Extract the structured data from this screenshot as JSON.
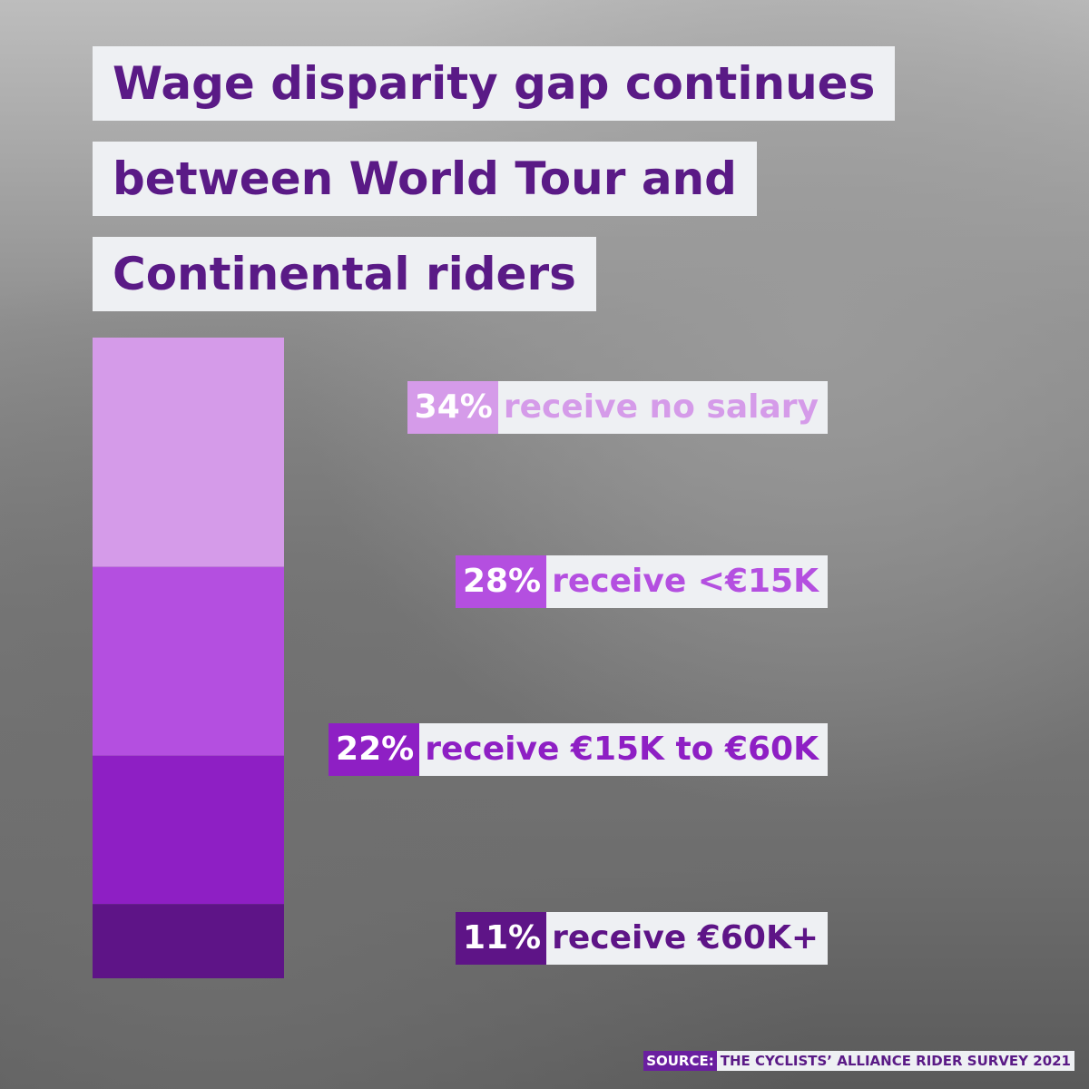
{
  "chart_data": {
    "type": "stacked-bar",
    "title": "Wage disparity gap continues between World Tour and Continental riders",
    "categories": [
      "receive no salary",
      "receive <€15K",
      "receive €15K to €60K",
      "receive €60K+"
    ],
    "values": [
      34,
      28,
      22,
      11
    ],
    "value_labels": [
      "34%",
      "28%",
      "22%",
      "11%"
    ],
    "colors": [
      "#d59be9",
      "#b44fe0",
      "#8e1fc4",
      "#5e1487"
    ],
    "source_label": "SOURCE:",
    "source": "THE CYCLISTS’ ALLIANCE RIDER SURVEY 2021"
  }
}
